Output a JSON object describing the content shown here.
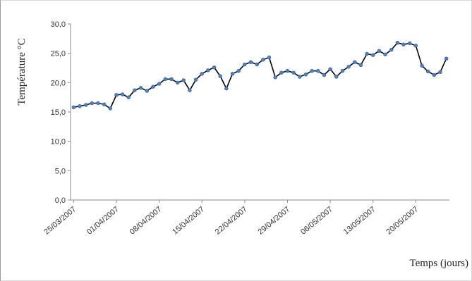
{
  "chart_data": {
    "type": "line",
    "title": "",
    "xlabel": "Temps (jours)",
    "ylabel": "Température °C",
    "ylim": [
      0,
      30
    ],
    "y_ticks": [
      "0,0",
      "5,0",
      "10,0",
      "15,0",
      "20,0",
      "25,0",
      "30,0"
    ],
    "x_ticks": [
      "25/03/2007",
      "01/04/2007",
      "08/04/2007",
      "15/04/2007",
      "22/04/2007",
      "29/04/2007",
      "06/05/2007",
      "13/05/2007",
      "20/05/2007"
    ],
    "grid": false,
    "legend": "none",
    "line_color": "#000000",
    "marker_color": "#4f81bd",
    "series": [
      {
        "x": [
          "25/03/2007",
          "26/03/2007",
          "27/03/2007",
          "28/03/2007",
          "29/03/2007",
          "30/03/2007",
          "31/03/2007",
          "01/04/2007",
          "02/04/2007",
          "03/04/2007",
          "04/04/2007",
          "05/04/2007",
          "06/04/2007",
          "07/04/2007",
          "08/04/2007",
          "09/04/2007",
          "10/04/2007",
          "11/04/2007",
          "12/04/2007",
          "13/04/2007",
          "14/04/2007",
          "15/04/2007",
          "16/04/2007",
          "17/04/2007",
          "18/04/2007",
          "19/04/2007",
          "20/04/2007",
          "21/04/2007",
          "22/04/2007",
          "23/04/2007",
          "24/04/2007",
          "25/04/2007",
          "26/04/2007",
          "27/04/2007",
          "28/04/2007",
          "29/04/2007",
          "30/04/2007",
          "01/05/2007",
          "02/05/2007",
          "03/05/2007",
          "04/05/2007",
          "05/05/2007",
          "06/05/2007",
          "07/05/2007",
          "08/05/2007",
          "09/05/2007",
          "10/05/2007",
          "11/05/2007",
          "12/05/2007",
          "13/05/2007",
          "14/05/2007",
          "15/05/2007",
          "16/05/2007",
          "17/05/2007",
          "18/05/2007",
          "19/05/2007",
          "20/05/2007",
          "21/05/2007",
          "22/05/2007",
          "23/05/2007",
          "24/05/2007",
          "25/05/2007"
        ],
        "values": [
          15.8,
          16.0,
          16.2,
          16.5,
          16.5,
          16.3,
          15.6,
          17.9,
          18.0,
          17.5,
          18.7,
          19.1,
          18.6,
          19.3,
          19.8,
          20.6,
          20.6,
          20.0,
          20.4,
          18.7,
          20.5,
          21.5,
          22.1,
          22.6,
          21.1,
          19.0,
          21.5,
          22.0,
          23.1,
          23.5,
          23.1,
          23.9,
          24.3,
          20.9,
          21.7,
          22.0,
          21.7,
          21.0,
          21.4,
          22.0,
          22.0,
          21.3,
          22.3,
          21.0,
          22.0,
          22.7,
          23.5,
          23.0,
          24.9,
          24.7,
          25.4,
          24.8,
          25.6,
          26.8,
          26.5,
          26.7,
          26.3,
          22.9,
          21.9,
          21.3,
          21.8,
          24.1
        ]
      }
    ]
  }
}
